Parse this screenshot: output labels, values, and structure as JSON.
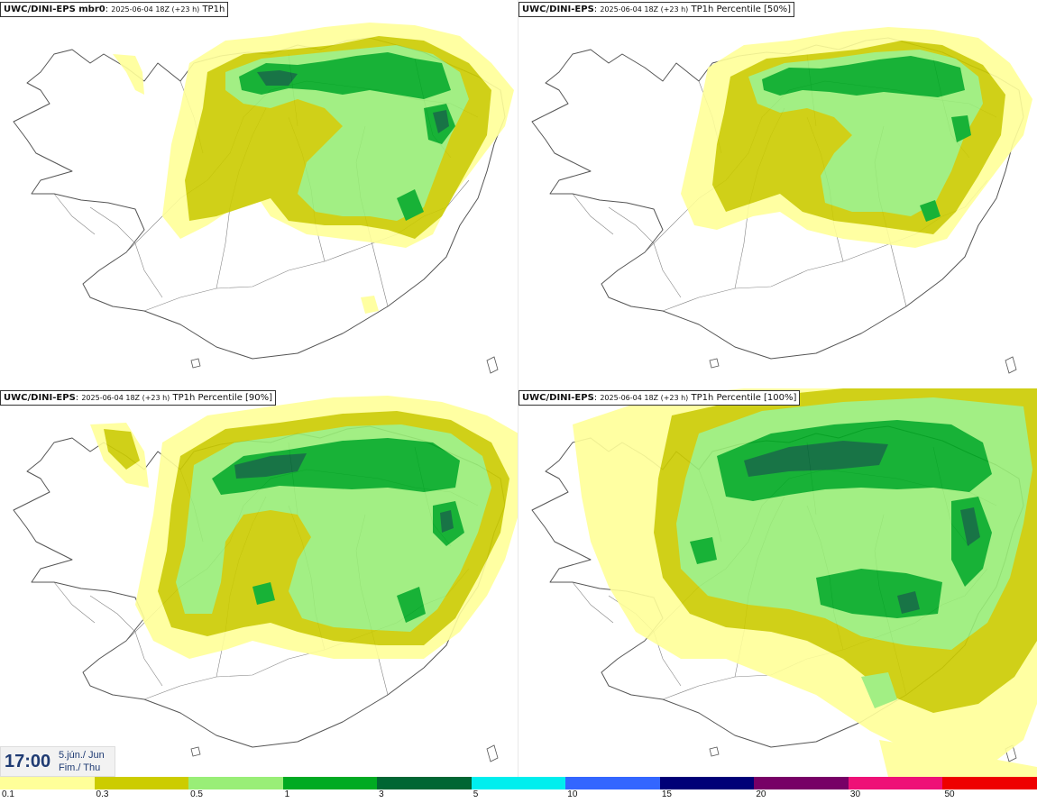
{
  "panels": [
    {
      "model": "UWC/DINI-EPS mbr0",
      "run": "2025-06-04 18Z (+23 h)",
      "field": "TP1h"
    },
    {
      "model": "UWC/DINI-EPS",
      "run": "2025-06-04 18Z (+23 h)",
      "field": "TP1h Percentile [50%]"
    },
    {
      "model": "UWC/DINI-EPS",
      "run": "2025-06-04 18Z (+23 h)",
      "field": "TP1h Percentile [90%]"
    },
    {
      "model": "UWC/DINI-EPS",
      "run": "2025-06-04 18Z (+23 h)",
      "field": "TP1h Percentile [100%]"
    }
  ],
  "valid_time": {
    "time": "17:00",
    "date_line1": "5.jún./ Jun",
    "date_line2": "Fim./ Thu"
  },
  "legend": {
    "labels": [
      "0.1",
      "0.3",
      "0.5",
      "1",
      "3",
      "5",
      "10",
      "15",
      "20",
      "30",
      "50"
    ],
    "colors": [
      "#ffff99",
      "#cccc00",
      "#99ee77",
      "#00aa22",
      "#006633",
      "#00eeee",
      "#3366ff",
      "#000077",
      "#770066",
      "#ee1177",
      "#ee0000"
    ]
  },
  "colors": {
    "land": "#ffffff",
    "coast": "#555555",
    "level_0_1": "#ffff99",
    "level_0_3": "#cccc00",
    "level_0_5": "#99ee77",
    "level_1": "#00aa22",
    "level_3": "#006633"
  }
}
